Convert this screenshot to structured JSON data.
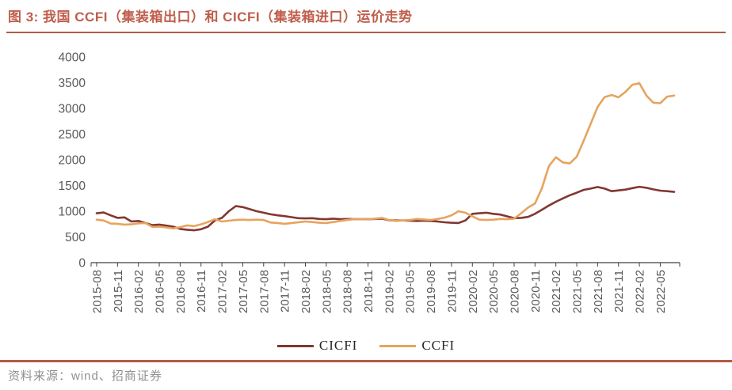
{
  "title": "图 3: 我国 CCFI（集装箱出口）和 CICFI（集装箱进口）运价走势",
  "footer": {
    "source_text": "资料来源：wind、招商证券"
  },
  "colors": {
    "title": "#BF5E4C",
    "rule": "#B25B48",
    "cicfi": "#823731",
    "ccfi": "#E6A45E",
    "axis_label": "#595959",
    "axis_line": "#404040",
    "legend_text": "#262626",
    "footer_text": "#8F8F8F"
  },
  "chart_data": {
    "type": "line",
    "title": "",
    "xlabel": "",
    "ylabel": "",
    "ylim": [
      0,
      4000
    ],
    "yticks": [
      0,
      500,
      1000,
      1500,
      2000,
      2500,
      3000,
      3500,
      4000
    ],
    "grid": false,
    "legend_position": "bottom",
    "x_tick_every": 3,
    "x": [
      "2015-08",
      "2015-09",
      "2015-10",
      "2015-11",
      "2015-12",
      "2016-01",
      "2016-02",
      "2016-03",
      "2016-04",
      "2016-05",
      "2016-06",
      "2016-07",
      "2016-08",
      "2016-09",
      "2016-10",
      "2016-11",
      "2016-12",
      "2017-01",
      "2017-02",
      "2017-03",
      "2017-04",
      "2017-05",
      "2017-06",
      "2017-07",
      "2017-08",
      "2017-09",
      "2017-10",
      "2017-11",
      "2017-12",
      "2018-01",
      "2018-02",
      "2018-03",
      "2018-04",
      "2018-05",
      "2018-06",
      "2018-07",
      "2018-08",
      "2018-09",
      "2018-10",
      "2018-11",
      "2018-12",
      "2019-01",
      "2019-02",
      "2019-03",
      "2019-04",
      "2019-05",
      "2019-06",
      "2019-07",
      "2019-08",
      "2019-09",
      "2019-10",
      "2019-11",
      "2019-12",
      "2020-01",
      "2020-02",
      "2020-03",
      "2020-04",
      "2020-05",
      "2020-06",
      "2020-07",
      "2020-08",
      "2020-09",
      "2020-10",
      "2020-11",
      "2020-12",
      "2021-01",
      "2021-02",
      "2021-03",
      "2021-04",
      "2021-05",
      "2021-06",
      "2021-07",
      "2021-08",
      "2021-09",
      "2021-10",
      "2021-11",
      "2021-12",
      "2022-01",
      "2022-02",
      "2022-03",
      "2022-04",
      "2022-05",
      "2022-06",
      "2022-07"
    ],
    "x_tick_labels": [
      "2015-08",
      "2015-11",
      "2016-02",
      "2016-05",
      "2016-08",
      "2016-11",
      "2017-02",
      "2017-05",
      "2017-08",
      "2017-11",
      "2018-02",
      "2018-05",
      "2018-08",
      "2018-11",
      "2019-02",
      "2019-05",
      "2019-08",
      "2019-11",
      "2020-02",
      "2020-05",
      "2020-08",
      "2020-11",
      "2021-02",
      "2021-05",
      "2021-08",
      "2021-11",
      "2022-02",
      "2022-05"
    ],
    "series": [
      {
        "name": "CICFI",
        "color_key": "cicfi",
        "values": [
          960,
          975,
          920,
          870,
          880,
          800,
          810,
          770,
          730,
          740,
          720,
          700,
          655,
          640,
          630,
          650,
          700,
          820,
          870,
          1000,
          1100,
          1080,
          1040,
          1000,
          970,
          940,
          920,
          905,
          885,
          865,
          860,
          865,
          850,
          845,
          855,
          845,
          850,
          845,
          850,
          845,
          850,
          855,
          825,
          820,
          820,
          815,
          810,
          815,
          810,
          800,
          785,
          775,
          770,
          820,
          950,
          960,
          970,
          950,
          935,
          900,
          865,
          870,
          890,
          950,
          1030,
          1110,
          1185,
          1250,
          1310,
          1360,
          1415,
          1440,
          1470,
          1440,
          1390,
          1405,
          1420,
          1450,
          1475,
          1455,
          1425,
          1400,
          1390,
          1375
        ]
      },
      {
        "name": "CCFI",
        "color_key": "ccfi",
        "values": [
          835,
          820,
          760,
          755,
          740,
          745,
          765,
          770,
          695,
          700,
          685,
          665,
          690,
          725,
          710,
          745,
          790,
          845,
          800,
          815,
          830,
          835,
          830,
          835,
          830,
          780,
          770,
          755,
          770,
          785,
          800,
          790,
          775,
          770,
          790,
          810,
          830,
          845,
          850,
          845,
          855,
          870,
          830,
          810,
          820,
          830,
          850,
          840,
          830,
          850,
          875,
          920,
          1000,
          970,
          900,
          835,
          830,
          835,
          850,
          845,
          855,
          960,
          1070,
          1150,
          1450,
          1880,
          2050,
          1950,
          1930,
          2060,
          2370,
          2700,
          3030,
          3220,
          3260,
          3215,
          3320,
          3460,
          3490,
          3250,
          3110,
          3100,
          3230,
          3250
        ]
      }
    ]
  }
}
